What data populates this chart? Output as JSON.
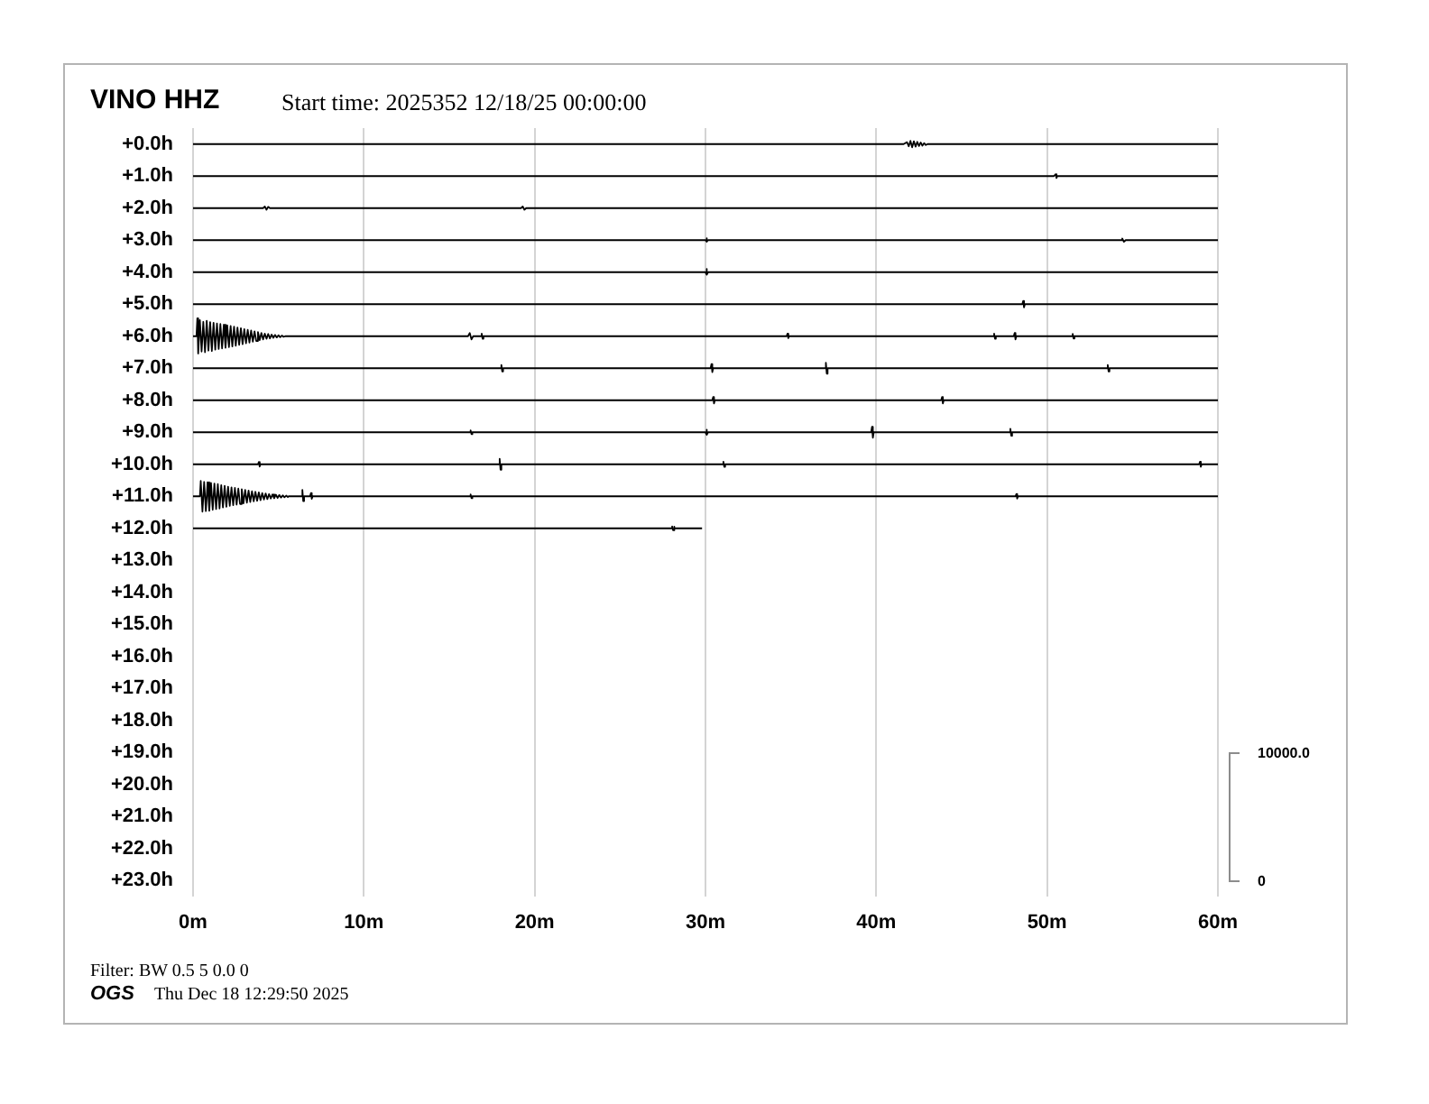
{
  "chart_data": {
    "type": "line",
    "title": "VINO HHZ",
    "subtitle": "Start time: 2025352 12/18/25 00:00:00",
    "annotations": [
      "10000.0",
      "0",
      "Filter: BW 0.5 5 0.0 0",
      "OGS",
      "Thu Dec 18 12:29:50 2025"
    ],
    "xlim": [
      0,
      60
    ],
    "xticks": [
      {
        "value": 0,
        "label": "0m"
      },
      {
        "value": 10,
        "label": "10m"
      },
      {
        "value": 20,
        "label": "20m"
      },
      {
        "value": 30,
        "label": "30m"
      },
      {
        "value": 40,
        "label": "40m"
      },
      {
        "value": 50,
        "label": "50m"
      },
      {
        "value": 60,
        "label": "60m"
      }
    ],
    "ylim": [
      23.5,
      -0.5
    ],
    "yticks": [
      {
        "value": 0,
        "label": "+0.0h"
      },
      {
        "value": 1,
        "label": "+1.0h"
      },
      {
        "value": 2,
        "label": "+2.0h"
      },
      {
        "value": 3,
        "label": "+3.0h"
      },
      {
        "value": 4,
        "label": "+4.0h"
      },
      {
        "value": 5,
        "label": "+5.0h"
      },
      {
        "value": 6,
        "label": "+6.0h"
      },
      {
        "value": 7,
        "label": "+7.0h"
      },
      {
        "value": 8,
        "label": "+8.0h"
      },
      {
        "value": 9,
        "label": "+9.0h"
      },
      {
        "value": 10,
        "label": "+10.0h"
      },
      {
        "value": 11,
        "label": "+11.0h"
      },
      {
        "value": 12,
        "label": "+12.0h"
      },
      {
        "value": 13,
        "label": "+13.0h"
      },
      {
        "value": 14,
        "label": "+14.0h"
      },
      {
        "value": 15,
        "label": "+15.0h"
      },
      {
        "value": 16,
        "label": "+16.0h"
      },
      {
        "value": 17,
        "label": "+17.0h"
      },
      {
        "value": 18,
        "label": "+18.0h"
      },
      {
        "value": 19,
        "label": "+19.0h"
      },
      {
        "value": 20,
        "label": "+20.0h"
      },
      {
        "value": 21,
        "label": "+21.0h"
      },
      {
        "value": 22,
        "label": "+22.0h"
      },
      {
        "value": 23,
        "label": "+23.0h"
      }
    ],
    "grid": "x",
    "legend": false,
    "marker": "none",
    "line_style": "solid",
    "series": [
      {
        "color": "#000000",
        "x": [
          0,
          41.6,
          41.8,
          41.9,
          42,
          42.1,
          42.2,
          42.3,
          42.4,
          42.5,
          42.6,
          42.7,
          42.8,
          42.9,
          43,
          60
        ],
        "values": [
          0,
          0,
          -0.06,
          0.07,
          -0.1,
          0.1,
          -0.09,
          0.08,
          -0.07,
          0.06,
          -0.05,
          0.05,
          -0.03,
          0.03,
          0,
          0
        ]
      },
      {
        "color": "#000000",
        "x": [
          0,
          50.4,
          50.5,
          50.55,
          50.6,
          60
        ],
        "values": [
          1,
          1,
          0.94,
          1.06,
          1,
          1
        ]
      },
      {
        "color": "#000000",
        "x": [
          0,
          4.1,
          4.2,
          4.3,
          4.4,
          4.5,
          19.2,
          19.3,
          19.4,
          19.5,
          60
        ],
        "values": [
          2,
          2,
          1.95,
          2.05,
          1.96,
          2,
          2,
          1.95,
          2.05,
          2,
          2
        ]
      },
      {
        "color": "#000000",
        "x": [
          0,
          30,
          30.05,
          30.1,
          30.15,
          54.3,
          54.4,
          54.5,
          54.6,
          60
        ],
        "values": [
          3,
          3,
          2.94,
          3.05,
          3,
          3,
          2.95,
          3.05,
          3,
          3
        ]
      },
      {
        "color": "#000000",
        "x": [
          0,
          30,
          30.05,
          30.1,
          30.15,
          60
        ],
        "values": [
          4,
          4,
          3.9,
          4.08,
          4,
          4
        ]
      },
      {
        "color": "#000000",
        "x": [
          0,
          48.55,
          48.6,
          48.65,
          48.7,
          60
        ],
        "values": [
          5,
          5,
          4.9,
          5.1,
          5,
          5
        ]
      },
      {
        "color": "#000000",
        "x": [
          0,
          0.2,
          0.25,
          0.3,
          0.4,
          0.5,
          0.6,
          0.7,
          0.8,
          0.9,
          1,
          1.1,
          1.2,
          1.3,
          1.4,
          1.5,
          1.6,
          1.7,
          1.8,
          1.9,
          2,
          2.1,
          2.2,
          2.3,
          2.4,
          2.5,
          2.6,
          2.7,
          2.8,
          2.9,
          3,
          3.1,
          3.2,
          3.3,
          3.4,
          3.5,
          3.6,
          3.7,
          3.8,
          3.9,
          4,
          4.1,
          4.2,
          4.3,
          4.4,
          4.5,
          4.6,
          4.7,
          4.8,
          4.9,
          5,
          5.1,
          5.2,
          5.3,
          5.4,
          16.1,
          16.2,
          16.3,
          16.4,
          16.85,
          16.9,
          16.95,
          17,
          34.75,
          34.8,
          34.85,
          34.9,
          46.85,
          46.9,
          46.95,
          47,
          48.05,
          48.1,
          48.15,
          48.2,
          51.45,
          51.5,
          51.55,
          51.6,
          60
        ],
        "values": [
          6,
          6,
          5.44,
          6.54,
          5.5,
          6.48,
          5.55,
          6.5,
          5.52,
          6.45,
          5.56,
          6.46,
          5.58,
          6.42,
          5.6,
          6.4,
          5.62,
          6.38,
          5.64,
          6.36,
          5.66,
          6.34,
          5.68,
          6.32,
          5.7,
          6.3,
          5.73,
          6.27,
          5.75,
          6.25,
          5.78,
          6.22,
          5.8,
          6.2,
          5.82,
          6.17,
          5.85,
          6.15,
          5.87,
          6.12,
          5.9,
          6.1,
          5.92,
          6.08,
          5.93,
          6.07,
          5.95,
          6.05,
          5.96,
          6.04,
          5.97,
          6.03,
          5.98,
          6.02,
          6,
          6,
          5.9,
          6.1,
          6,
          6,
          5.92,
          6.08,
          6,
          6,
          5.92,
          6.06,
          6,
          6,
          5.92,
          6.08,
          6,
          6,
          5.9,
          6.1,
          6,
          6,
          5.93,
          6.07,
          6,
          6
        ]
      },
      {
        "color": "#000000",
        "x": [
          0,
          18,
          18.05,
          18.1,
          18.15,
          30.3,
          30.35,
          30.4,
          30.45,
          37,
          37.05,
          37.1,
          37.15,
          53.5,
          53.55,
          53.6,
          53.65,
          60
        ],
        "values": [
          7,
          7,
          6.9,
          7.1,
          7,
          7,
          6.87,
          7.12,
          7,
          7,
          6.83,
          7.17,
          7,
          7,
          6.9,
          7.1,
          7,
          7
        ]
      },
      {
        "color": "#000000",
        "x": [
          0,
          30.4,
          30.45,
          30.5,
          30.55,
          43.8,
          43.85,
          43.9,
          43.95,
          60
        ],
        "values": [
          8,
          8,
          7.9,
          8.1,
          8,
          8,
          7.9,
          8.1,
          8,
          8
        ]
      },
      {
        "color": "#000000",
        "x": [
          0,
          16.2,
          16.25,
          16.3,
          16.35,
          30,
          30.05,
          30.1,
          30.15,
          39.7,
          39.75,
          39.8,
          39.85,
          47.8,
          47.85,
          47.9,
          47.95,
          60
        ],
        "values": [
          9,
          9,
          8.94,
          9.06,
          9,
          9,
          8.92,
          9.08,
          9,
          9,
          8.83,
          9.17,
          9,
          9,
          8.89,
          9.11,
          9,
          9
        ]
      },
      {
        "color": "#000000",
        "x": [
          0,
          3.8,
          3.85,
          3.9,
          3.95,
          17.9,
          17.95,
          18,
          18.05,
          31,
          31.05,
          31.1,
          31.15,
          58.9,
          58.95,
          59,
          59.05,
          60
        ],
        "values": [
          10,
          10,
          9.93,
          10.07,
          10,
          10,
          9.83,
          10.17,
          10,
          10,
          9.92,
          10.08,
          10,
          10,
          9.92,
          10.08,
          10,
          10
        ]
      },
      {
        "color": "#000000",
        "x": [
          0,
          0.4,
          0.45,
          0.55,
          0.65,
          0.75,
          0.85,
          0.95,
          1.05,
          1.15,
          1.25,
          1.35,
          1.45,
          1.55,
          1.65,
          1.75,
          1.85,
          1.95,
          2.05,
          2.15,
          2.25,
          2.35,
          2.45,
          2.55,
          2.65,
          2.75,
          2.85,
          2.95,
          3.05,
          3.15,
          3.25,
          3.35,
          3.45,
          3.55,
          3.65,
          3.75,
          3.85,
          3.95,
          4.05,
          4.15,
          4.25,
          4.35,
          4.45,
          4.55,
          4.65,
          4.75,
          4.85,
          4.95,
          5.05,
          5.15,
          5.25,
          5.35,
          5.45,
          5.55,
          5.6,
          6.35,
          6.4,
          6.45,
          6.5,
          6.85,
          6.9,
          6.95,
          7,
          16.2,
          16.25,
          16.3,
          16.35,
          48.15,
          48.2,
          48.25,
          48.3,
          60
        ],
        "values": [
          11,
          11,
          10.52,
          11.48,
          10.55,
          11.46,
          10.56,
          11.45,
          10.58,
          11.42,
          10.6,
          11.4,
          10.62,
          11.38,
          10.65,
          11.35,
          10.67,
          11.33,
          10.7,
          11.3,
          10.72,
          11.28,
          10.74,
          11.26,
          10.76,
          11.24,
          10.78,
          11.22,
          10.8,
          11.2,
          10.82,
          11.18,
          10.84,
          11.16,
          10.86,
          11.14,
          10.88,
          11.12,
          10.9,
          11.1,
          10.91,
          11.09,
          10.93,
          11.07,
          10.94,
          11.06,
          10.95,
          11.05,
          10.96,
          11.04,
          10.97,
          11.03,
          10.98,
          11.02,
          11,
          11,
          10.8,
          11.15,
          11,
          11,
          10.9,
          11.08,
          11,
          11,
          10.94,
          11.06,
          11,
          11,
          10.93,
          11.07,
          11,
          11
        ]
      },
      {
        "color": "#000000",
        "x": [
          0,
          28,
          28.05,
          28.1,
          28.15,
          28.2,
          29.8
        ],
        "values": [
          12,
          12,
          11.94,
          12.06,
          11.95,
          12,
          12
        ]
      }
    ]
  }
}
